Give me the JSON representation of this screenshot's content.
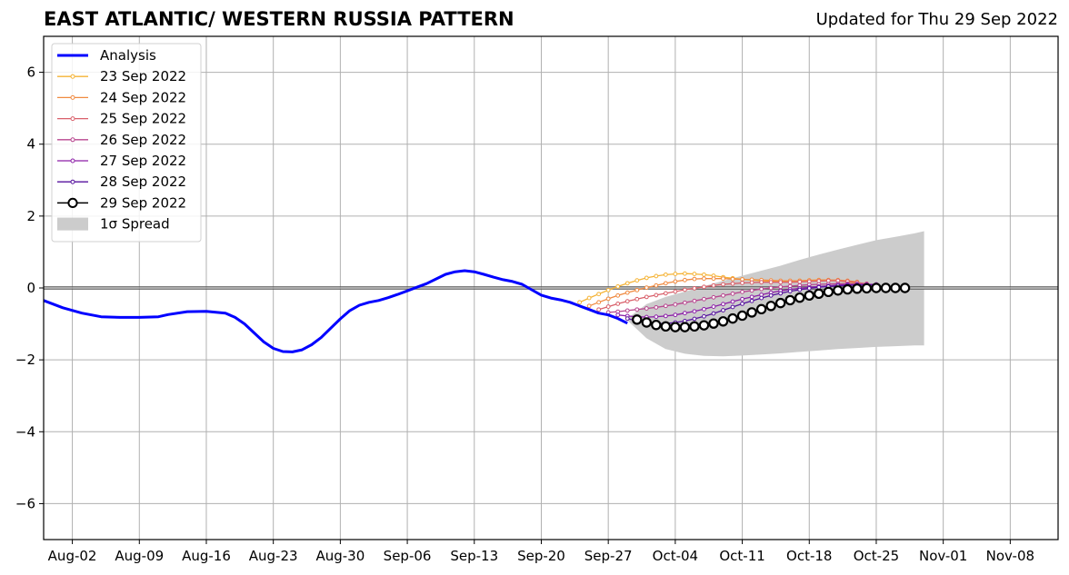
{
  "title": "EAST ATLANTIC/ WESTERN RUSSIA PATTERN",
  "subtitle": "Updated for Thu 29 Sep 2022",
  "chart_data": {
    "type": "line",
    "x_axis": {
      "type": "date",
      "range": [
        "2022-07-30",
        "2022-11-13"
      ],
      "ticks": [
        "2022-08-02",
        "2022-08-09",
        "2022-08-16",
        "2022-08-23",
        "2022-08-30",
        "2022-09-06",
        "2022-09-13",
        "2022-09-20",
        "2022-09-27",
        "2022-10-04",
        "2022-10-11",
        "2022-10-18",
        "2022-10-25",
        "2022-11-01",
        "2022-11-08"
      ],
      "tick_labels": [
        "Aug-02",
        "Aug-09",
        "Aug-16",
        "Aug-23",
        "Aug-30",
        "Sep-06",
        "Sep-13",
        "Sep-20",
        "Sep-27",
        "Oct-04",
        "Oct-11",
        "Oct-18",
        "Oct-25",
        "Nov-01",
        "Nov-08"
      ]
    },
    "y_axis": {
      "range": [
        -7,
        7
      ],
      "ticks": [
        -6,
        -4,
        -2,
        0,
        2,
        4,
        6
      ],
      "tick_labels": [
        "−6",
        "−4",
        "−2",
        "0",
        "2",
        "4",
        "6"
      ]
    },
    "grid": true,
    "zero_line": true,
    "legend": {
      "position": "top-left",
      "entries": [
        "Analysis",
        "23 Sep 2022",
        "24 Sep 2022",
        "25 Sep 2022",
        "26 Sep 2022",
        "27 Sep 2022",
        "28 Sep 2022",
        "29 Sep 2022",
        "1σ Spread"
      ]
    },
    "colors": {
      "analysis": "#0000ff",
      "f23": "#f5b335",
      "f24": "#f08a40",
      "f25": "#d95f6a",
      "f26": "#b8468f",
      "f27": "#8c1fa8",
      "f28": "#56129e",
      "f29": "#000000",
      "spread": "#cccccc"
    },
    "analysis": {
      "name": "Analysis",
      "points": [
        [
          "2022-07-30",
          -0.35
        ],
        [
          "2022-08-01",
          -0.55
        ],
        [
          "2022-08-03",
          -0.7
        ],
        [
          "2022-08-05",
          -0.8
        ],
        [
          "2022-08-07",
          -0.82
        ],
        [
          "2022-08-09",
          -0.82
        ],
        [
          "2022-08-11",
          -0.8
        ],
        [
          "2022-08-12",
          -0.74
        ],
        [
          "2022-08-14",
          -0.66
        ],
        [
          "2022-08-16",
          -0.65
        ],
        [
          "2022-08-18",
          -0.7
        ],
        [
          "2022-08-19",
          -0.82
        ],
        [
          "2022-08-20",
          -1.0
        ],
        [
          "2022-08-21",
          -1.25
        ],
        [
          "2022-08-22",
          -1.5
        ],
        [
          "2022-08-23",
          -1.68
        ],
        [
          "2022-08-24",
          -1.77
        ],
        [
          "2022-08-25",
          -1.78
        ],
        [
          "2022-08-26",
          -1.72
        ],
        [
          "2022-08-27",
          -1.58
        ],
        [
          "2022-08-28",
          -1.38
        ],
        [
          "2022-08-29",
          -1.12
        ],
        [
          "2022-08-30",
          -0.86
        ],
        [
          "2022-08-31",
          -0.63
        ],
        [
          "2022-09-01",
          -0.48
        ],
        [
          "2022-09-02",
          -0.4
        ],
        [
          "2022-09-03",
          -0.35
        ],
        [
          "2022-09-04",
          -0.27
        ],
        [
          "2022-09-05",
          -0.18
        ],
        [
          "2022-09-06",
          -0.08
        ],
        [
          "2022-09-07",
          0.02
        ],
        [
          "2022-09-08",
          0.12
        ],
        [
          "2022-09-09",
          0.25
        ],
        [
          "2022-09-10",
          0.38
        ],
        [
          "2022-09-11",
          0.45
        ],
        [
          "2022-09-12",
          0.48
        ],
        [
          "2022-09-13",
          0.45
        ],
        [
          "2022-09-14",
          0.38
        ],
        [
          "2022-09-15",
          0.3
        ],
        [
          "2022-09-16",
          0.23
        ],
        [
          "2022-09-17",
          0.18
        ],
        [
          "2022-09-18",
          0.1
        ],
        [
          "2022-09-19",
          -0.05
        ],
        [
          "2022-09-20",
          -0.2
        ],
        [
          "2022-09-21",
          -0.28
        ],
        [
          "2022-09-22",
          -0.33
        ],
        [
          "2022-09-23",
          -0.4
        ],
        [
          "2022-09-24",
          -0.5
        ],
        [
          "2022-09-25",
          -0.6
        ],
        [
          "2022-09-26",
          -0.7
        ],
        [
          "2022-09-27",
          -0.75
        ],
        [
          "2022-09-28",
          -0.85
        ],
        [
          "2022-09-29",
          -0.98
        ]
      ]
    },
    "forecasts": [
      {
        "name": "23 Sep 2022",
        "color_key": "f23",
        "start": "2022-09-24",
        "values": [
          -0.4,
          -0.28,
          -0.17,
          -0.06,
          0.04,
          0.13,
          0.21,
          0.28,
          0.33,
          0.37,
          0.39,
          0.4,
          0.39,
          0.37,
          0.34,
          0.3,
          0.27,
          0.24,
          0.22,
          0.2,
          0.19,
          0.19,
          0.19,
          0.2,
          0.21,
          0.22,
          0.22,
          0.2,
          0.17,
          0.13
        ]
      },
      {
        "name": "24 Sep 2022",
        "color_key": "f24",
        "start": "2022-09-25",
        "values": [
          -0.5,
          -0.4,
          -0.3,
          -0.21,
          -0.13,
          -0.06,
          0.01,
          0.07,
          0.13,
          0.18,
          0.22,
          0.25,
          0.26,
          0.26,
          0.26,
          0.25,
          0.24,
          0.23,
          0.22,
          0.21,
          0.2,
          0.2,
          0.2,
          0.21,
          0.22,
          0.22,
          0.22,
          0.2,
          0.17
        ]
      },
      {
        "name": "25 Sep 2022",
        "color_key": "f25",
        "start": "2022-09-26",
        "values": [
          -0.6,
          -0.52,
          -0.44,
          -0.37,
          -0.31,
          -0.25,
          -0.2,
          -0.15,
          -0.1,
          -0.05,
          -0.01,
          0.03,
          0.07,
          0.1,
          0.12,
          0.14,
          0.15,
          0.16,
          0.16,
          0.16,
          0.16,
          0.17,
          0.18,
          0.19,
          0.2,
          0.2,
          0.18,
          0.15,
          0.12
        ]
      },
      {
        "name": "26 Sep 2022",
        "color_key": "f26",
        "start": "2022-09-27",
        "values": [
          -0.68,
          -0.66,
          -0.63,
          -0.6,
          -0.57,
          -0.54,
          -0.5,
          -0.46,
          -0.41,
          -0.36,
          -0.31,
          -0.26,
          -0.21,
          -0.16,
          -0.11,
          -0.07,
          -0.03,
          0.0,
          0.03,
          0.05,
          0.07,
          0.09,
          0.1,
          0.11,
          0.12,
          0.12,
          0.11,
          0.1,
          0.09
        ]
      },
      {
        "name": "27 Sep 2022",
        "color_key": "f27",
        "start": "2022-09-28",
        "values": [
          -0.75,
          -0.78,
          -0.8,
          -0.81,
          -0.8,
          -0.78,
          -0.75,
          -0.7,
          -0.65,
          -0.59,
          -0.52,
          -0.45,
          -0.38,
          -0.31,
          -0.25,
          -0.19,
          -0.13,
          -0.08,
          -0.04,
          -0.01,
          0.02,
          0.04,
          0.06,
          0.08,
          0.09,
          0.1,
          0.1,
          0.1
        ]
      },
      {
        "name": "28 Sep 2022",
        "color_key": "f28",
        "start": "2022-09-29",
        "values": [
          -0.85,
          -0.92,
          -0.97,
          -0.99,
          -0.99,
          -0.96,
          -0.92,
          -0.86,
          -0.79,
          -0.71,
          -0.62,
          -0.53,
          -0.44,
          -0.36,
          -0.28,
          -0.21,
          -0.15,
          -0.09,
          -0.05,
          -0.01,
          0.02,
          0.04,
          0.06,
          0.07,
          0.08,
          0.08,
          0.08
        ]
      },
      {
        "name": "29 Sep 2022",
        "color_key": "f29",
        "start": "2022-09-30",
        "values": [
          -0.88,
          -0.96,
          -1.03,
          -1.07,
          -1.09,
          -1.09,
          -1.07,
          -1.04,
          -0.99,
          -0.93,
          -0.85,
          -0.77,
          -0.68,
          -0.59,
          -0.5,
          -0.42,
          -0.34,
          -0.27,
          -0.21,
          -0.16,
          -0.11,
          -0.07,
          -0.04,
          -0.02,
          -0.01,
          0.0,
          0.0,
          0.0,
          0.0
        ]
      }
    ],
    "spread": {
      "name": "1σ Spread",
      "points": [
        [
          "2022-09-29",
          -0.85,
          -0.9
        ],
        [
          "2022-10-01",
          -0.45,
          -1.4
        ],
        [
          "2022-10-03",
          -0.25,
          -1.7
        ],
        [
          "2022-10-05",
          -0.1,
          -1.83
        ],
        [
          "2022-10-07",
          0.05,
          -1.89
        ],
        [
          "2022-10-09",
          0.2,
          -1.9
        ],
        [
          "2022-10-11",
          0.34,
          -1.88
        ],
        [
          "2022-10-13",
          0.48,
          -1.85
        ],
        [
          "2022-10-15",
          0.62,
          -1.82
        ],
        [
          "2022-10-17",
          0.78,
          -1.78
        ],
        [
          "2022-10-19",
          0.93,
          -1.74
        ],
        [
          "2022-10-21",
          1.07,
          -1.7
        ],
        [
          "2022-10-23",
          1.2,
          -1.67
        ],
        [
          "2022-10-25",
          1.33,
          -1.64
        ],
        [
          "2022-10-27",
          1.42,
          -1.62
        ],
        [
          "2022-10-29",
          1.52,
          -1.6
        ],
        [
          "2022-10-30",
          1.58,
          -1.6
        ]
      ]
    }
  }
}
